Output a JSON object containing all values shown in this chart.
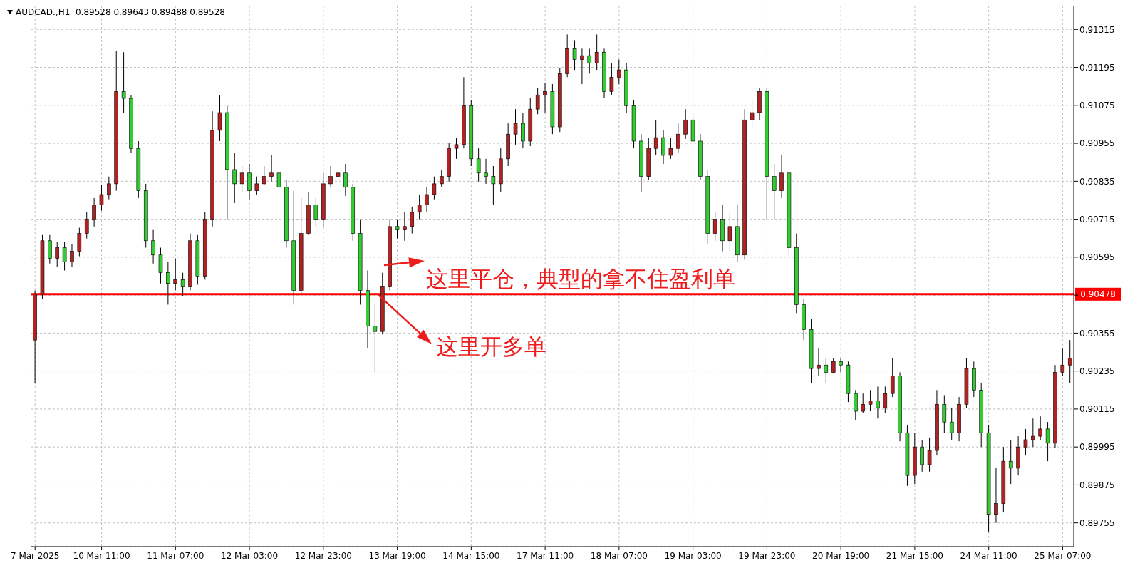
{
  "chart_data": {
    "type": "candlestick",
    "title": "AUDCAD.,H1  0.89528 0.89643 0.89488 0.89528",
    "annotations": [
      "这里平仓，典型的拿不住盈利单",
      {
        "text": "这里开多单",
        "y": 0.90478
      }
    ],
    "categories": [
      "7 Mar 2025",
      null,
      null,
      null,
      null,
      null,
      null,
      null,
      null,
      "10 Mar 11:00",
      null,
      null,
      null,
      null,
      null,
      null,
      null,
      null,
      null,
      "11 Mar 07:00",
      null,
      null,
      null,
      null,
      null,
      null,
      null,
      null,
      null,
      "12 Mar 03:00",
      null,
      null,
      null,
      null,
      null,
      null,
      null,
      null,
      null,
      "12 Mar 23:00",
      null,
      null,
      null,
      null,
      null,
      null,
      null,
      null,
      null,
      "13 Mar 19:00",
      null,
      null,
      null,
      null,
      null,
      null,
      null,
      null,
      null,
      "14 Mar 15:00",
      null,
      null,
      null,
      null,
      null,
      null,
      null,
      null,
      null,
      "17 Mar 11:00",
      null,
      null,
      null,
      null,
      null,
      null,
      null,
      null,
      null,
      "18 Mar 07:00",
      null,
      null,
      null,
      null,
      null,
      null,
      null,
      null,
      null,
      "19 Mar 03:00",
      null,
      null,
      null,
      null,
      null,
      null,
      null,
      null,
      null,
      "19 Mar 23:00",
      null,
      null,
      null,
      null,
      null,
      null,
      null,
      null,
      null,
      "20 Mar 19:00",
      null,
      null,
      null,
      null,
      null,
      null,
      null,
      null,
      null,
      "21 Mar 15:00",
      null,
      null,
      null,
      null,
      null,
      null,
      null,
      null,
      null,
      "24 Mar 11:00",
      null,
      null,
      null,
      null,
      null,
      null,
      null,
      null,
      null,
      "25 Mar 07:00",
      null
    ],
    "ohlc": [
      [
        0.90333,
        0.9049,
        0.90198,
        0.90479
      ],
      [
        0.90479,
        0.90665,
        0.90463,
        0.90647
      ],
      [
        0.90647,
        0.90665,
        0.90575,
        0.90591
      ],
      [
        0.90591,
        0.90643,
        0.90564,
        0.90625
      ],
      [
        0.90625,
        0.90643,
        0.90553,
        0.9058
      ],
      [
        0.9058,
        0.90636,
        0.90564,
        0.90614
      ],
      [
        0.90614,
        0.90688,
        0.90598,
        0.9067
      ],
      [
        0.9067,
        0.90737,
        0.90654,
        0.90715
      ],
      [
        0.90715,
        0.90782,
        0.90692,
        0.9076
      ],
      [
        0.9076,
        0.90823,
        0.90742,
        0.90793
      ],
      [
        0.90793,
        0.9085,
        0.90778,
        0.90827
      ],
      [
        0.90827,
        0.91247,
        0.90805,
        0.91119
      ],
      [
        0.91119,
        0.91243,
        0.91052,
        0.91097
      ],
      [
        0.91097,
        0.91108,
        0.90924,
        0.90939
      ],
      [
        0.90939,
        0.90962,
        0.90782,
        0.90805
      ],
      [
        0.90805,
        0.90827,
        0.90625,
        0.90647
      ],
      [
        0.90647,
        0.90681,
        0.90575,
        0.90602
      ],
      [
        0.90602,
        0.90625,
        0.90512,
        0.90546
      ],
      [
        0.90546,
        0.9058,
        0.90445,
        0.90512
      ],
      [
        0.90512,
        0.90591,
        0.9049,
        0.90524
      ],
      [
        0.90524,
        0.90546,
        0.90472,
        0.90501
      ],
      [
        0.90501,
        0.9067,
        0.9049,
        0.90647
      ],
      [
        0.90647,
        0.90665,
        0.90508,
        0.90535
      ],
      [
        0.90535,
        0.90737,
        0.90524,
        0.90715
      ],
      [
        0.90715,
        0.91056,
        0.90692,
        0.90996
      ],
      [
        0.90996,
        0.91108,
        0.90962,
        0.91052
      ],
      [
        0.91052,
        0.91074,
        0.90715,
        0.90872
      ],
      [
        0.90872,
        0.90924,
        0.90766,
        0.90827
      ],
      [
        0.90827,
        0.90883,
        0.908,
        0.90861
      ],
      [
        0.90861,
        0.9089,
        0.90778,
        0.90805
      ],
      [
        0.90805,
        0.9085,
        0.90793,
        0.90827
      ],
      [
        0.90827,
        0.90883,
        0.90823,
        0.9085
      ],
      [
        0.9085,
        0.90917,
        0.90834,
        0.90861
      ],
      [
        0.90861,
        0.90969,
        0.90793,
        0.90816
      ],
      [
        0.90816,
        0.90838,
        0.90625,
        0.90647
      ],
      [
        0.90647,
        0.90805,
        0.90445,
        0.9049
      ],
      [
        0.9049,
        0.90782,
        0.90479,
        0.9067
      ],
      [
        0.9067,
        0.908,
        0.90665,
        0.9076
      ],
      [
        0.9076,
        0.90782,
        0.90692,
        0.90715
      ],
      [
        0.90715,
        0.90861,
        0.90688,
        0.90827
      ],
      [
        0.90827,
        0.90883,
        0.90816,
        0.9085
      ],
      [
        0.9085,
        0.90906,
        0.90827,
        0.90861
      ],
      [
        0.90861,
        0.9089,
        0.90789,
        0.90816
      ],
      [
        0.90816,
        0.90827,
        0.90647,
        0.9067
      ],
      [
        0.9067,
        0.90715,
        0.90445,
        0.9049
      ],
      [
        0.9049,
        0.90553,
        0.90306,
        0.90377
      ],
      [
        0.90377,
        0.90445,
        0.90231,
        0.9036
      ],
      [
        0.9036,
        0.90546,
        0.90351,
        0.90501
      ],
      [
        0.90501,
        0.90715,
        0.9049,
        0.90692
      ],
      [
        0.90692,
        0.90715,
        0.90654,
        0.90681
      ],
      [
        0.90681,
        0.90737,
        0.90647,
        0.90692
      ],
      [
        0.90692,
        0.90755,
        0.9067,
        0.90737
      ],
      [
        0.90737,
        0.90793,
        0.90715,
        0.9076
      ],
      [
        0.9076,
        0.90816,
        0.90737,
        0.90793
      ],
      [
        0.90793,
        0.9085,
        0.90778,
        0.90827
      ],
      [
        0.90827,
        0.90872,
        0.90816,
        0.9085
      ],
      [
        0.9085,
        0.90957,
        0.90834,
        0.90939
      ],
      [
        0.90939,
        0.90973,
        0.90906,
        0.90951
      ],
      [
        0.90951,
        0.91164,
        0.90939,
        0.91074
      ],
      [
        0.91074,
        0.91092,
        0.90883,
        0.90906
      ],
      [
        0.90906,
        0.90939,
        0.90834,
        0.90861
      ],
      [
        0.90861,
        0.90906,
        0.90827,
        0.9085
      ],
      [
        0.9085,
        0.90883,
        0.9076,
        0.90827
      ],
      [
        0.90827,
        0.90939,
        0.908,
        0.90906
      ],
      [
        0.90906,
        0.91018,
        0.90883,
        0.90984
      ],
      [
        0.90984,
        0.91063,
        0.90951,
        0.91018
      ],
      [
        0.91018,
        0.91052,
        0.90939,
        0.90962
      ],
      [
        0.90962,
        0.91097,
        0.90946,
        0.91063
      ],
      [
        0.91063,
        0.91131,
        0.91047,
        0.91108
      ],
      [
        0.91108,
        0.91146,
        0.91052,
        0.91119
      ],
      [
        0.91119,
        0.91142,
        0.90984,
        0.91007
      ],
      [
        0.91007,
        0.91193,
        0.90991,
        0.91175
      ],
      [
        0.91175,
        0.91299,
        0.91164,
        0.91254
      ],
      [
        0.91254,
        0.91281,
        0.91187,
        0.9122
      ],
      [
        0.9122,
        0.91254,
        0.91142,
        0.91232
      ],
      [
        0.91232,
        0.91254,
        0.91175,
        0.91209
      ],
      [
        0.91209,
        0.91299,
        0.91187,
        0.91243
      ],
      [
        0.91243,
        0.91254,
        0.91097,
        0.91119
      ],
      [
        0.91119,
        0.91209,
        0.91108,
        0.91164
      ],
      [
        0.91164,
        0.9122,
        0.91142,
        0.91187
      ],
      [
        0.91187,
        0.91209,
        0.91052,
        0.91074
      ],
      [
        0.91074,
        0.91092,
        0.90939,
        0.90962
      ],
      [
        0.90962,
        0.90984,
        0.908,
        0.9085
      ],
      [
        0.9085,
        0.90973,
        0.90838,
        0.90939
      ],
      [
        0.90939,
        0.91029,
        0.90917,
        0.90973
      ],
      [
        0.90973,
        0.90996,
        0.9089,
        0.90917
      ],
      [
        0.90917,
        0.90973,
        0.90906,
        0.90939
      ],
      [
        0.90939,
        0.91018,
        0.90924,
        0.90984
      ],
      [
        0.90984,
        0.91063,
        0.90969,
        0.91029
      ],
      [
        0.91029,
        0.91052,
        0.90946,
        0.90962
      ],
      [
        0.90962,
        0.90984,
        0.90838,
        0.9085
      ],
      [
        0.9085,
        0.90872,
        0.90636,
        0.9067
      ],
      [
        0.9067,
        0.90737,
        0.90647,
        0.90715
      ],
      [
        0.90715,
        0.9076,
        0.90614,
        0.90647
      ],
      [
        0.90647,
        0.90737,
        0.90614,
        0.90692
      ],
      [
        0.90692,
        0.9076,
        0.9058,
        0.90602
      ],
      [
        0.90602,
        0.91063,
        0.90587,
        0.91029
      ],
      [
        0.91029,
        0.91092,
        0.91007,
        0.91052
      ],
      [
        0.91052,
        0.91131,
        0.91029,
        0.91119
      ],
      [
        0.91119,
        0.91131,
        0.90715,
        0.9085
      ],
      [
        0.9085,
        0.9089,
        0.90715,
        0.90805
      ],
      [
        0.90805,
        0.90917,
        0.90782,
        0.90861
      ],
      [
        0.90861,
        0.90872,
        0.90602,
        0.90625
      ],
      [
        0.90625,
        0.9067,
        0.90418,
        0.90445
      ],
      [
        0.90445,
        0.90463,
        0.90333,
        0.90366
      ],
      [
        0.90366,
        0.904,
        0.90198,
        0.90243
      ],
      [
        0.90243,
        0.90306,
        0.9022,
        0.90254
      ],
      [
        0.90254,
        0.90276,
        0.90198,
        0.90231
      ],
      [
        0.90231,
        0.90276,
        0.90227,
        0.90265
      ],
      [
        0.90265,
        0.90276,
        0.90231,
        0.90254
      ],
      [
        0.90254,
        0.90265,
        0.90137,
        0.90164
      ],
      [
        0.90164,
        0.90175,
        0.90081,
        0.90108
      ],
      [
        0.90108,
        0.90164,
        0.90103,
        0.9013
      ],
      [
        0.9013,
        0.90175,
        0.90108,
        0.90141
      ],
      [
        0.90141,
        0.90186,
        0.90085,
        0.90119
      ],
      [
        0.90119,
        0.90186,
        0.90103,
        0.90164
      ],
      [
        0.90164,
        0.90276,
        0.90153,
        0.9022
      ],
      [
        0.9022,
        0.90231,
        0.90013,
        0.9004
      ],
      [
        0.9004,
        0.90063,
        0.89872,
        0.89905
      ],
      [
        0.89905,
        0.9004,
        0.89878,
        0.89995
      ],
      [
        0.89995,
        0.90018,
        0.89917,
        0.89939
      ],
      [
        0.89939,
        0.90025,
        0.89917,
        0.89984
      ],
      [
        0.89984,
        0.90175,
        0.89968,
        0.9013
      ],
      [
        0.9013,
        0.90159,
        0.9004,
        0.90074
      ],
      [
        0.90074,
        0.90119,
        0.90018,
        0.9004
      ],
      [
        0.9004,
        0.90153,
        0.90013,
        0.9013
      ],
      [
        0.9013,
        0.90276,
        0.90119,
        0.90243
      ],
      [
        0.90243,
        0.90265,
        0.90153,
        0.90175
      ],
      [
        0.90175,
        0.90198,
        0.89995,
        0.9004
      ],
      [
        0.9004,
        0.90063,
        0.89726,
        0.89782
      ],
      [
        0.89782,
        0.89928,
        0.89755,
        0.89816
      ],
      [
        0.89816,
        0.89995,
        0.89789,
        0.8995
      ],
      [
        0.8995,
        0.90018,
        0.89878,
        0.89928
      ],
      [
        0.89928,
        0.90029,
        0.89905,
        0.89995
      ],
      [
        0.89995,
        0.90052,
        0.89968,
        0.90018
      ],
      [
        0.90018,
        0.90085,
        0.89995,
        0.90029
      ],
      [
        0.90029,
        0.90092,
        0.90018,
        0.90052
      ],
      [
        0.90052,
        0.90074,
        0.8995,
        0.90007
      ],
      [
        0.90007,
        0.90254,
        0.89991,
        0.90231
      ],
      [
        0.90231,
        0.90306,
        0.9022,
        0.90254
      ],
      [
        0.90254,
        0.90333,
        0.90198,
        0.90276
      ]
    ],
    "colors": [
      "#b22222",
      "#b22222",
      "#32cd32",
      "#b22222",
      "#32cd32",
      "#b22222",
      "#b22222",
      "#b22222",
      "#b22222",
      "#b22222",
      "#b22222",
      "#b22222",
      "#32cd32",
      "#32cd32",
      "#32cd32",
      "#32cd32",
      "#32cd32",
      "#32cd32",
      "#32cd32",
      "#b22222",
      "#32cd32",
      "#b22222",
      "#32cd32",
      "#b22222",
      "#b22222",
      "#b22222",
      "#32cd32",
      "#32cd32",
      "#b22222",
      "#32cd32",
      "#b22222",
      "#b22222",
      "#b22222",
      "#32cd32",
      "#32cd32",
      "#32cd32",
      "#b22222",
      "#b22222",
      "#32cd32",
      "#b22222",
      "#b22222",
      "#b22222",
      "#32cd32",
      "#32cd32",
      "#32cd32",
      "#32cd32",
      "#32cd32",
      "#b22222",
      "#b22222",
      "#32cd32",
      "#b22222",
      "#b22222",
      "#b22222",
      "#b22222",
      "#b22222",
      "#b22222",
      "#b22222",
      "#b22222",
      "#b22222",
      "#32cd32",
      "#32cd32",
      "#32cd32",
      "#32cd32",
      "#b22222",
      "#b22222",
      "#b22222",
      "#32cd32",
      "#b22222",
      "#b22222",
      "#b22222",
      "#32cd32",
      "#b22222",
      "#b22222",
      "#32cd32",
      "#b22222",
      "#32cd32",
      "#b22222",
      "#32cd32",
      "#b22222",
      "#b22222",
      "#32cd32",
      "#32cd32",
      "#32cd32",
      "#b22222",
      "#b22222",
      "#32cd32",
      "#b22222",
      "#b22222",
      "#b22222",
      "#32cd32",
      "#32cd32",
      "#32cd32",
      "#b22222",
      "#32cd32",
      "#b22222",
      "#32cd32",
      "#b22222",
      "#b22222",
      "#b22222",
      "#32cd32",
      "#32cd32",
      "#b22222",
      "#32cd32",
      "#32cd32",
      "#32cd32",
      "#32cd32",
      "#b22222",
      "#32cd32",
      "#b22222",
      "#32cd32",
      "#32cd32",
      "#32cd32",
      "#b22222",
      "#b22222",
      "#32cd32",
      "#b22222",
      "#b22222",
      "#32cd32",
      "#32cd32",
      "#b22222",
      "#32cd32",
      "#b22222",
      "#b22222",
      "#32cd32",
      "#32cd32",
      "#b22222",
      "#b22222",
      "#32cd32",
      "#32cd32",
      "#32cd32",
      "#b22222",
      "#b22222",
      "#32cd32",
      "#b22222",
      "#b22222",
      "#b22222",
      "#b22222",
      "#32cd32",
      "#b22222",
      "#b22222",
      "#b22222"
    ],
    "ylim": [
      0.8968,
      0.9139
    ],
    "yticks": [
      0.89755,
      0.89875,
      0.89995,
      0.90115,
      0.90235,
      0.90355,
      {
        "value": 0.90475,
        "label": null
      },
      0.90595,
      0.90715,
      0.90835,
      0.90955,
      0.91075,
      0.91195,
      0.91315
    ],
    "grid": true,
    "ref_lines": [
      {
        "axis": "y",
        "value": 0.90478,
        "label": "0.90478",
        "color": "#ff0000"
      }
    ]
  }
}
